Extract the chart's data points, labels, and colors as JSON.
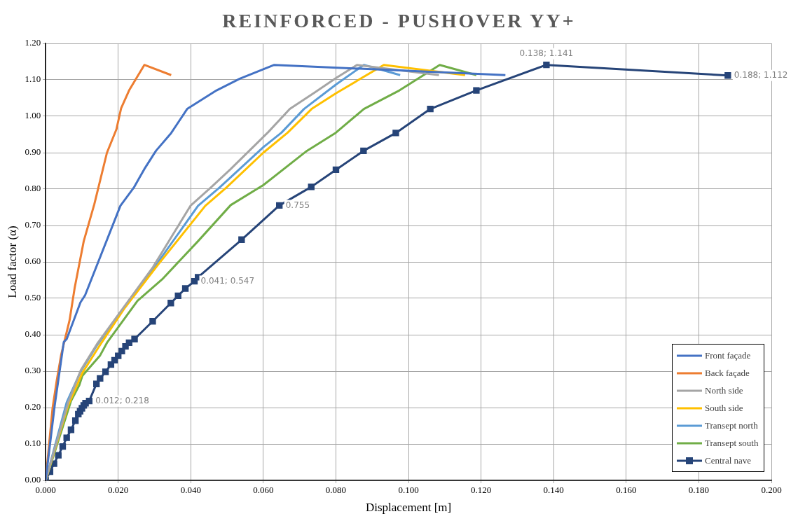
{
  "chart_data": {
    "type": "line",
    "title": "REINFORCED - PUSHOVER YY+",
    "xlabel": "Displacement [m]",
    "ylabel": "Load factor (α)",
    "xlim": [
      0,
      0.2
    ],
    "xticks": [
      {
        "value": 0,
        "label": "0.000"
      },
      {
        "value": 0.02,
        "label": "0.020"
      },
      {
        "value": 0.04,
        "label": "0.040"
      },
      {
        "value": 0.06,
        "label": "0.060"
      },
      {
        "value": 0.08,
        "label": "0.080"
      },
      {
        "value": 0.1,
        "label": "0.100"
      },
      {
        "value": 0.12,
        "label": "0.120"
      },
      {
        "value": 0.14,
        "label": "0.140"
      },
      {
        "value": 0.16,
        "label": "0.160"
      },
      {
        "value": 0.18,
        "label": "0.180"
      },
      {
        "value": 0.2,
        "label": "0.200"
      }
    ],
    "ylim": [
      0,
      1.2
    ],
    "yticks": [
      {
        "value": 0,
        "label": "0.00"
      },
      {
        "value": 0.1,
        "label": "0.10"
      },
      {
        "value": 0.2,
        "label": "0.20"
      },
      {
        "value": 0.3,
        "label": "0.30"
      },
      {
        "value": 0.4,
        "label": "0.40"
      },
      {
        "value": 0.5,
        "label": "0.50"
      },
      {
        "value": 0.6,
        "label": "0.60"
      },
      {
        "value": 0.7,
        "label": "0.70"
      },
      {
        "value": 0.8,
        "label": "0.80"
      },
      {
        "value": 0.9,
        "label": "0.90"
      },
      {
        "value": 1,
        "label": "1.00"
      },
      {
        "value": 1.1,
        "label": "1.10"
      },
      {
        "value": 1.2,
        "label": "1.20"
      }
    ],
    "grid": true,
    "legend": "bottom right",
    "line_style": "solid",
    "series": [
      {
        "name": "Front façade",
        "color": "#4472c4",
        "marker": "none",
        "x": [
          0,
          0.0025,
          0.005,
          0.0058,
          0.0096,
          0.0109,
          0.0206,
          0.0243,
          0.0272,
          0.0304,
          0.0346,
          0.039,
          0.0471,
          0.0535,
          0.063,
          0.1267
        ],
        "values": [
          0,
          0.206,
          0.38,
          0.388,
          0.489,
          0.509,
          0.754,
          0.804,
          0.855,
          0.905,
          0.954,
          1.02,
          1.071,
          1.103,
          1.141,
          1.113
        ]
      },
      {
        "name": "Back façade",
        "color": "#ed7d31",
        "marker": "none",
        "x": [
          0,
          0.0019,
          0.0031,
          0.0043,
          0.0066,
          0.008,
          0.0105,
          0.0134,
          0.0169,
          0.0195,
          0.0208,
          0.023,
          0.0272,
          0.0346
        ],
        "values": [
          0,
          0.198,
          0.277,
          0.346,
          0.44,
          0.529,
          0.657,
          0.758,
          0.9,
          0.964,
          1.022,
          1.071,
          1.141,
          1.113
        ]
      },
      {
        "name": "North side",
        "color": "#a5a5a5",
        "marker": "none",
        "x": [
          0,
          0.0062,
          0.0097,
          0.0142,
          0.0201,
          0.0296,
          0.0399,
          0.0455,
          0.051,
          0.0613,
          0.0673,
          0.0741,
          0.08,
          0.0858,
          0.1084
        ],
        "values": [
          0,
          0.214,
          0.303,
          0.375,
          0.456,
          0.586,
          0.754,
          0.804,
          0.855,
          0.956,
          1.02,
          1.065,
          1.105,
          1.141,
          1.113
        ]
      },
      {
        "name": "South side",
        "color": "#ffc000",
        "marker": "none",
        "x": [
          0,
          0.0062,
          0.0101,
          0.0146,
          0.0216,
          0.0311,
          0.044,
          0.0498,
          0.06,
          0.0667,
          0.0733,
          0.08,
          0.0932,
          0.1156
        ],
        "values": [
          0,
          0.206,
          0.295,
          0.366,
          0.471,
          0.594,
          0.754,
          0.804,
          0.9,
          0.955,
          1.02,
          1.063,
          1.141,
          1.113
        ]
      },
      {
        "name": "Transept north",
        "color": "#5b9bd5",
        "marker": "none",
        "x": [
          0,
          0.0058,
          0.0097,
          0.0142,
          0.0201,
          0.0296,
          0.042,
          0.0479,
          0.06,
          0.065,
          0.0712,
          0.08,
          0.0877,
          0.0977
        ],
        "values": [
          0,
          0.214,
          0.3,
          0.372,
          0.452,
          0.58,
          0.754,
          0.804,
          0.915,
          0.955,
          1.02,
          1.087,
          1.141,
          1.113
        ]
      },
      {
        "name": "Transept south",
        "color": "#70ad47",
        "marker": "none",
        "x": [
          0,
          0.007,
          0.0093,
          0.0101,
          0.015,
          0.0169,
          0.0253,
          0.0321,
          0.042,
          0.051,
          0.06,
          0.072,
          0.08,
          0.0877,
          0.0975,
          0.1086,
          0.1187
        ],
        "values": [
          0,
          0.218,
          0.262,
          0.287,
          0.343,
          0.378,
          0.493,
          0.552,
          0.657,
          0.756,
          0.811,
          0.905,
          0.955,
          1.02,
          1.071,
          1.141,
          1.113
        ]
      },
      {
        "name": "Central nave",
        "color": "#264478",
        "marker": "square",
        "x": [
          0,
          0.0012,
          0.0023,
          0.0035,
          0.0047,
          0.0058,
          0.007,
          0.0082,
          0.009,
          0.0095,
          0.01,
          0.0105,
          0.011,
          0.012,
          0.014,
          0.015,
          0.0165,
          0.018,
          0.019,
          0.02,
          0.021,
          0.022,
          0.023,
          0.0245,
          0.0295,
          0.0345,
          0.0365,
          0.0385,
          0.041,
          0.042,
          0.054,
          0.0644,
          0.0732,
          0.08,
          0.0876,
          0.0965,
          0.106,
          0.1187,
          0.138,
          0.188
        ],
        "values": [
          0,
          0.024,
          0.046,
          0.069,
          0.093,
          0.117,
          0.139,
          0.164,
          0.182,
          0.19,
          0.198,
          0.206,
          0.212,
          0.218,
          0.265,
          0.28,
          0.298,
          0.318,
          0.33,
          0.342,
          0.355,
          0.368,
          0.378,
          0.388,
          0.437,
          0.487,
          0.507,
          0.527,
          0.547,
          0.558,
          0.661,
          0.755,
          0.806,
          0.853,
          0.905,
          0.954,
          1.02,
          1.071,
          1.141,
          1.112
        ]
      }
    ],
    "annotations": [
      {
        "text": "0.012; 0.218",
        "x": 0.012,
        "y": 0.218
      },
      {
        "text": "0.041; 0.547",
        "x": 0.041,
        "y": 0.547
      },
      {
        "text": "0.755",
        "x": 0.0644,
        "y": 0.755
      },
      {
        "text": "0.138; 1.141",
        "x": 0.138,
        "y": 1.141
      },
      {
        "text": "0.188; 1.112",
        "x": 0.188,
        "y": 1.112
      }
    ]
  }
}
